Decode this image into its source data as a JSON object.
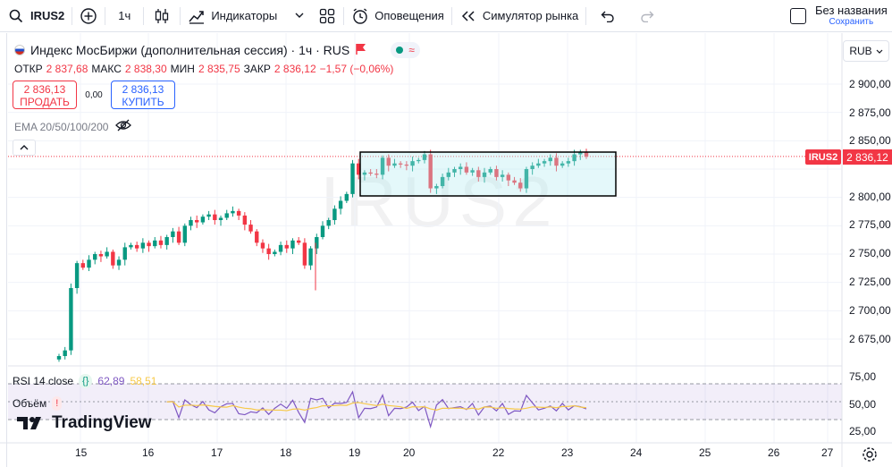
{
  "toolbar": {
    "symbol": "IRUS2",
    "interval": "1ч",
    "indicators_label": "Индикаторы",
    "alerts_label": "Оповещения",
    "replay_label": "Симулятор рынка",
    "layout_title": "Без названия",
    "layout_status": "Сохранить"
  },
  "legend": {
    "title": "Индекс МосБиржи (дополнительная сессия) · 1ч · RUS",
    "ohlc": {
      "open_label": "ОТКР",
      "open": "2 837,68",
      "high_label": "МАКС",
      "high": "2 838,30",
      "low_label": "МИН",
      "low": "2 835,75",
      "close_label": "ЗАКР",
      "close": "2 836,12",
      "change": "−1,57 (−0,06%)"
    },
    "sell_price": "2 836,13",
    "sell_label": "ПРОДАТЬ",
    "spread": "0,00",
    "buy_price": "2 836,13",
    "buy_label": "КУПИТЬ",
    "ema_label": "EMA 20/50/100/200"
  },
  "price_axis": {
    "currency": "RUB",
    "symbol_tag": "IRUS2",
    "current_price": "2 836,12",
    "ticks": [
      "2 900,00",
      "2 875,00",
      "2 850,00",
      "2 800,00",
      "2 775,00",
      "2 750,00",
      "2 725,00",
      "2 700,00",
      "2 675,00"
    ]
  },
  "rsi": {
    "label": "RSI 14 close",
    "value1": "62,89",
    "value2": "58,51",
    "ticks": [
      "75,00",
      "50,00",
      "25,00"
    ],
    "volume_label": "Объём"
  },
  "time_axis": {
    "ticks": [
      "15",
      "16",
      "17",
      "18",
      "19",
      "20",
      "22",
      "23",
      "24",
      "25",
      "26",
      "27"
    ]
  },
  "watermark": "IRUS2",
  "branding": "TradingView",
  "colors": {
    "up": "#089981",
    "down": "#f23645",
    "accent": "#2962ff",
    "rsi_line": "#7e57c2",
    "rsi_ma": "#f7c948"
  },
  "chart_data": {
    "type": "candlestick",
    "symbol": "IRUS2",
    "interval": "1ч",
    "ylim": [
      2660,
      2910
    ],
    "current_price": 2836.12,
    "close_series": [
      2660,
      2665,
      2720,
      2742,
      2738,
      2745,
      2750,
      2748,
      2752,
      2740,
      2745,
      2756,
      2758,
      2755,
      2760,
      2757,
      2762,
      2758,
      2765,
      2770,
      2760,
      2775,
      2780,
      2778,
      2783,
      2785,
      2780,
      2782,
      2786,
      2788,
      2784,
      2776,
      2770,
      2760,
      2755,
      2750,
      2752,
      2758,
      2755,
      2762,
      2760,
      2740,
      2755,
      2765,
      2775,
      2780,
      2790,
      2797,
      2803,
      2830,
      2820,
      2822,
      2821,
      2820,
      2835,
      2828,
      2830,
      2829,
      2828,
      2832,
      2833,
      2838,
      2808,
      2810,
      2818,
      2822,
      2825,
      2827,
      2822,
      2824,
      2818,
      2822,
      2825,
      2818,
      2820,
      2815,
      2813,
      2808,
      2825,
      2828,
      2830,
      2832,
      2835,
      2828,
      2830,
      2832,
      2838,
      2840,
      2836
    ],
    "rsi_range": [
      0,
      100
    ],
    "rsi_band": [
      30,
      70
    ]
  }
}
